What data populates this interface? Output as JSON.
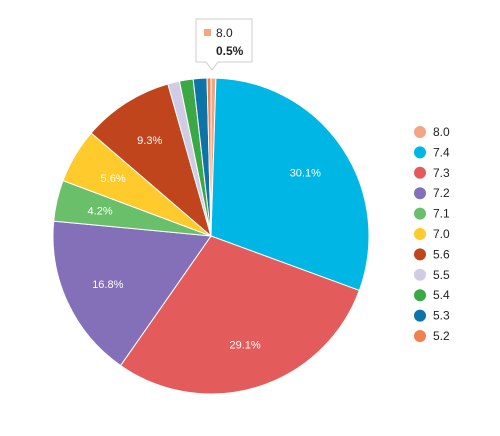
{
  "chart_data": {
    "type": "pie",
    "start_angle_deg": 0,
    "direction": "clockwise",
    "legend_position": "right",
    "slices": [
      {
        "label": "8.0",
        "percent": 0.5,
        "color": "#f4a582",
        "show_label": false
      },
      {
        "label": "7.4",
        "percent": 30.1,
        "color": "#00b6e5",
        "show_label": true
      },
      {
        "label": "7.3",
        "percent": 29.1,
        "color": "#e45b5b",
        "show_label": true
      },
      {
        "label": "7.2",
        "percent": 16.8,
        "color": "#8470b8",
        "show_label": true
      },
      {
        "label": "7.1",
        "percent": 4.2,
        "color": "#6abf6a",
        "show_label": true
      },
      {
        "label": "7.0",
        "percent": 5.6,
        "color": "#ffca2b",
        "show_label": true
      },
      {
        "label": "5.6",
        "percent": 9.3,
        "color": "#c0451c",
        "show_label": true
      },
      {
        "label": "5.5",
        "percent": 1.2,
        "color": "#d2cbe6",
        "show_label": false
      },
      {
        "label": "5.4",
        "percent": 1.4,
        "color": "#3aa845",
        "show_label": false
      },
      {
        "label": "5.3",
        "percent": 1.4,
        "color": "#0e74a8",
        "show_label": false
      },
      {
        "label": "5.2",
        "percent": 0.4,
        "color": "#f08050",
        "show_label": false
      }
    ],
    "tooltip": {
      "label": "8.0",
      "value_text": "0.5%",
      "color": "#f4a582"
    }
  }
}
